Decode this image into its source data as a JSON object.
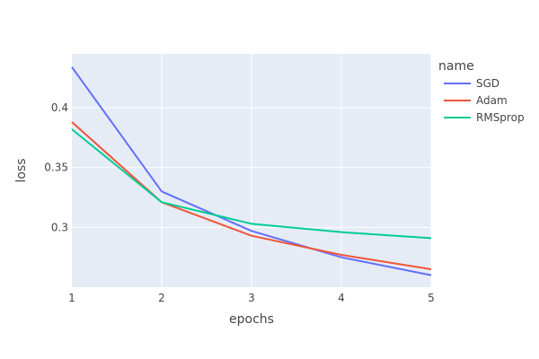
{
  "chart_data": {
    "type": "line",
    "title": "",
    "xlabel": "epochs",
    "ylabel": "loss",
    "x": [
      1,
      2,
      3,
      4,
      5
    ],
    "xlim": [
      1,
      5
    ],
    "ylim": [
      0.25,
      0.445
    ],
    "x_ticks": [
      1,
      2,
      3,
      4,
      5
    ],
    "y_ticks": [
      0.3,
      0.35,
      0.4
    ],
    "y_tick_labels": [
      "0.3",
      "0.35",
      "0.4"
    ],
    "grid": true,
    "plot_background": "#e5ecf6",
    "legend": {
      "title": "name",
      "placement": "right"
    },
    "series": [
      {
        "name": "SGD",
        "color": "#636efa",
        "values": [
          0.434,
          0.33,
          0.297,
          0.275,
          0.26
        ]
      },
      {
        "name": "Adam",
        "color": "#ef553b",
        "values": [
          0.388,
          0.321,
          0.293,
          0.277,
          0.265
        ]
      },
      {
        "name": "RMSprop",
        "color": "#00cc96",
        "values": [
          0.382,
          0.321,
          0.303,
          0.296,
          0.291
        ]
      }
    ]
  }
}
